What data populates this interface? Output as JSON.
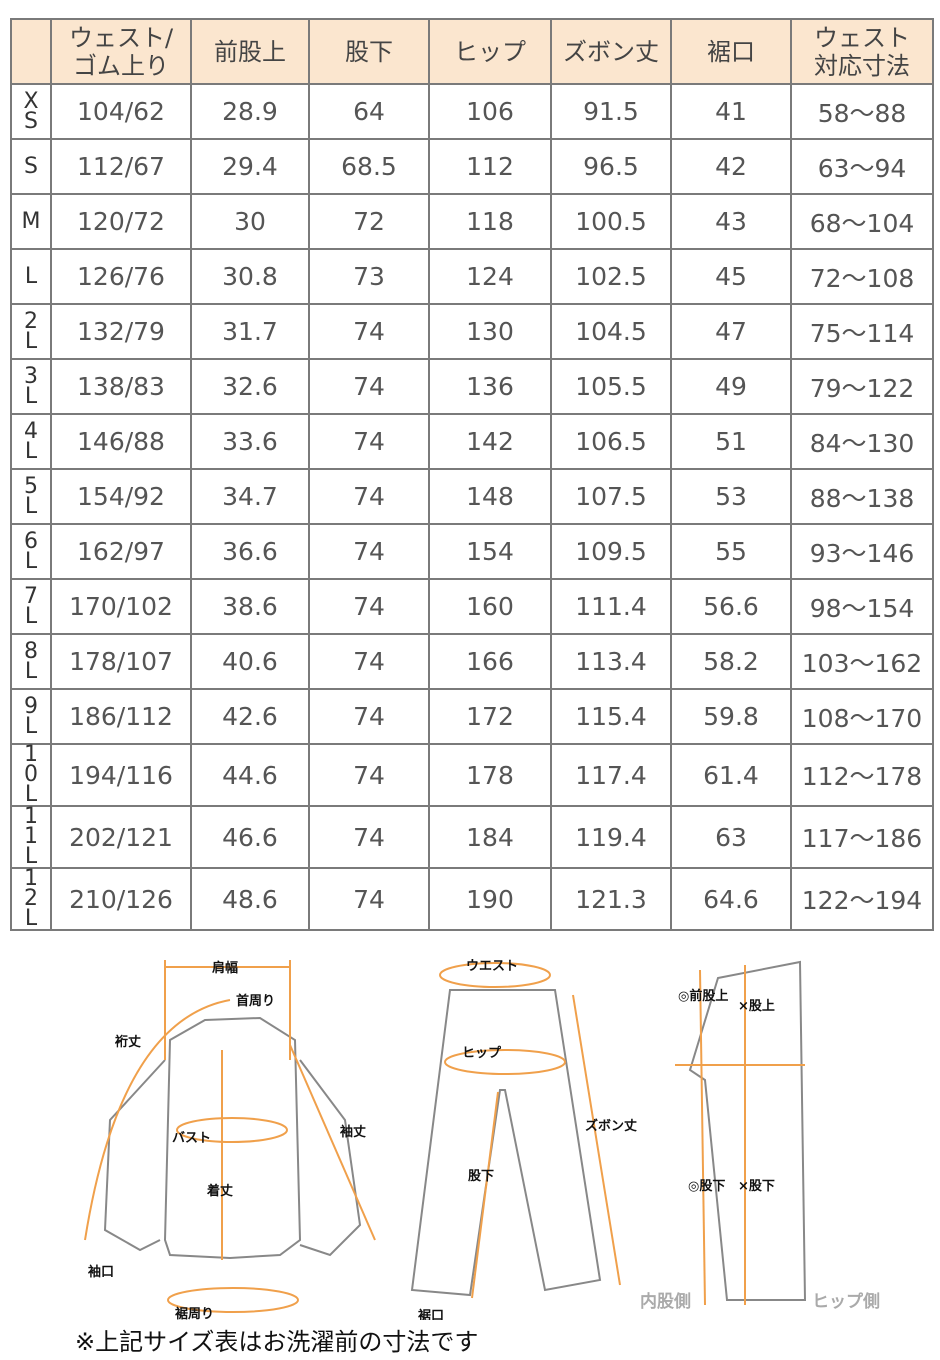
{
  "table": {
    "headers": [
      "",
      "ウェスト/\nゴム上り",
      "前股上",
      "股下",
      "ヒップ",
      "ズボン丈",
      "裾口",
      "ウェスト\n対応寸法"
    ],
    "rows": [
      [
        "XS",
        "104/62",
        "28.9",
        "64",
        "106",
        "91.5",
        "41",
        "58～88"
      ],
      [
        "S",
        "112/67",
        "29.4",
        "68.5",
        "112",
        "96.5",
        "42",
        "63～94"
      ],
      [
        "M",
        "120/72",
        "30",
        "72",
        "118",
        "100.5",
        "43",
        "68～104"
      ],
      [
        "L",
        "126/76",
        "30.8",
        "73",
        "124",
        "102.5",
        "45",
        "72～108"
      ],
      [
        "2L",
        "132/79",
        "31.7",
        "74",
        "130",
        "104.5",
        "47",
        "75～114"
      ],
      [
        "3L",
        "138/83",
        "32.6",
        "74",
        "136",
        "105.5",
        "49",
        "79～122"
      ],
      [
        "4L",
        "146/88",
        "33.6",
        "74",
        "142",
        "106.5",
        "51",
        "84～130"
      ],
      [
        "5L",
        "154/92",
        "34.7",
        "74",
        "148",
        "107.5",
        "53",
        "88～138"
      ],
      [
        "6L",
        "162/97",
        "36.6",
        "74",
        "154",
        "109.5",
        "55",
        "93～146"
      ],
      [
        "7L",
        "170/102",
        "38.6",
        "74",
        "160",
        "111.4",
        "56.6",
        "98～154"
      ],
      [
        "8L",
        "178/107",
        "40.6",
        "74",
        "166",
        "113.4",
        "58.2",
        "103～162"
      ],
      [
        "9L",
        "186/112",
        "42.6",
        "74",
        "172",
        "115.4",
        "59.8",
        "108～170"
      ],
      [
        "10L",
        "194/116",
        "44.6",
        "74",
        "178",
        "117.4",
        "61.4",
        "112～178"
      ],
      [
        "11L",
        "202/121",
        "46.6",
        "74",
        "184",
        "119.4",
        "63",
        "117～186"
      ],
      [
        "12L",
        "210/126",
        "48.6",
        "74",
        "190",
        "121.3",
        "64.6",
        "122～194"
      ]
    ]
  },
  "diagram": {
    "shirt": {
      "shoulder": "肩幅",
      "neck": "首周り",
      "yuki": "裄丈",
      "sleeve": "袖丈",
      "bust": "バスト",
      "length": "着丈",
      "cuff": "袖口",
      "hem": "裾周り"
    },
    "pants": {
      "waist": "ウエスト",
      "hip": "ヒップ",
      "inseam": "股下",
      "length": "ズボン丈",
      "hem": "裾口"
    },
    "side": {
      "good_rise": "◎前股上",
      "bad_rise": "×股上",
      "good_inseam": "◎股下",
      "bad_inseam": "×股下",
      "inner": "内股側",
      "hip_side": "ヒップ側"
    }
  },
  "accent": "#f0a04b",
  "note": "※上記サイズ表はお洗濯前の寸法です"
}
